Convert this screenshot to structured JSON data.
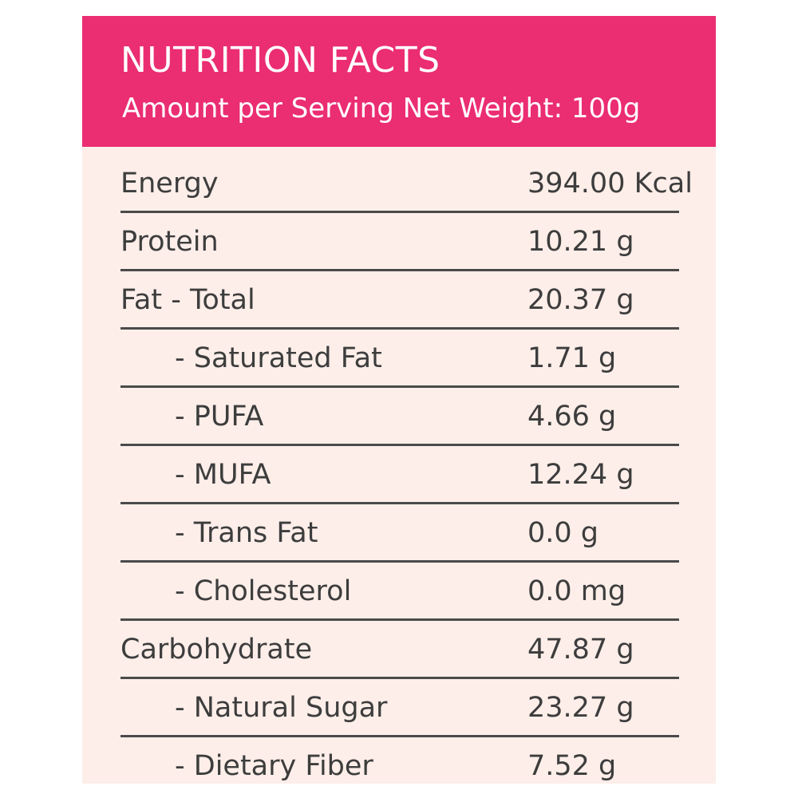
{
  "header": {
    "title": "NUTRITION FACTS",
    "subtitle": "Amount per Serving Net Weight: 100g"
  },
  "colors": {
    "header_bg": "#eb2d72",
    "panel_bg": "#fdeee9",
    "text": "#3d3d3d"
  },
  "rows": [
    {
      "label": "Energy",
      "value": "394.00 Kcal"
    },
    {
      "label": "Protein",
      "value": "10.21 g"
    },
    {
      "label": "Fat - Total",
      "value": "20.37 g"
    },
    {
      "label": "- Saturated Fat",
      "value": "1.71 g"
    },
    {
      "label": "- PUFA",
      "value": "4.66 g"
    },
    {
      "label": "- MUFA",
      "value": "12.24 g"
    },
    {
      "label": "- Trans Fat",
      "value": "0.0 g"
    },
    {
      "label": "- Cholesterol",
      "value": "0.0 mg"
    },
    {
      "label": "Carbohydrate",
      "value": "47.87 g"
    },
    {
      "label": "- Natural Sugar",
      "value": "23.27 g"
    },
    {
      "label": "- Dietary Fiber",
      "value": "7.52 g"
    }
  ]
}
